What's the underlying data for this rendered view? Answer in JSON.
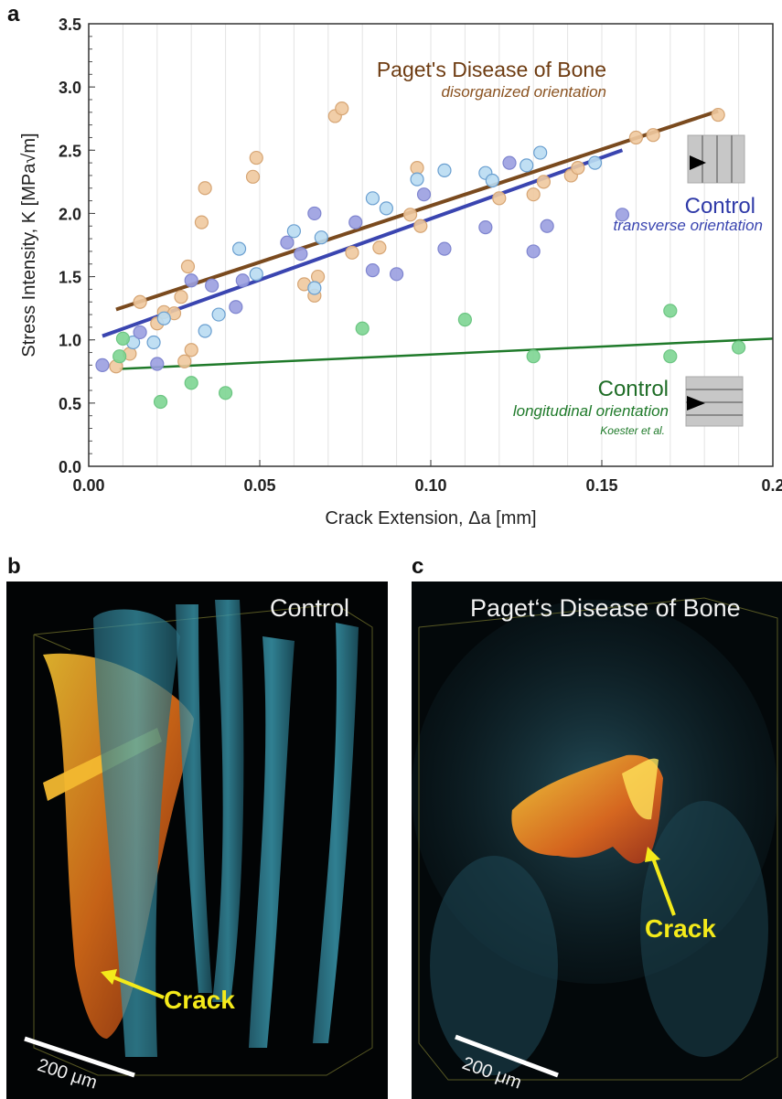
{
  "panels": {
    "a": "a",
    "b": "b",
    "c": "c"
  },
  "chart_data": {
    "type": "scatter",
    "xlabel": "Crack Extension, Δa [mm]",
    "ylabel": "Stress Intensity, K [MPa√m]",
    "xlim": [
      0,
      0.2
    ],
    "ylim": [
      0,
      3.5
    ],
    "x_ticks": [
      "0.00",
      "0.05",
      "0.10",
      "0.15",
      "0.2"
    ],
    "y_ticks": [
      "0.0",
      "0.5",
      "1.0",
      "1.5",
      "2.0",
      "2.5",
      "3.0",
      "3.5"
    ],
    "grid": true,
    "annotations": {
      "paget_title": "Paget's Disease of Bone",
      "paget_sub": "disorganized orientation",
      "transverse_title": "Control",
      "transverse_sub": "transverse orientation",
      "longitudinal_title": "Control",
      "longitudinal_sub": "longitudinal orientation",
      "reference": "Koester et al."
    },
    "colors": {
      "paget": "#7a4a1e",
      "paget_fill": "#efc99e",
      "transverse": "#3a45b0",
      "transverse_fill1": "#9a9ee0",
      "transverse_fill2": "#b9dcf2",
      "longitudinal": "#1f7a2a",
      "longitudinal_fill": "#7dd592"
    },
    "series": [
      {
        "id": "paget",
        "points": [
          [
            0.008,
            0.79
          ],
          [
            0.012,
            0.89
          ],
          [
            0.015,
            1.3
          ],
          [
            0.02,
            1.13
          ],
          [
            0.022,
            1.22
          ],
          [
            0.025,
            1.21
          ],
          [
            0.027,
            1.34
          ],
          [
            0.028,
            0.83
          ],
          [
            0.029,
            1.58
          ],
          [
            0.03,
            0.92
          ],
          [
            0.033,
            1.93
          ],
          [
            0.034,
            2.2
          ],
          [
            0.048,
            2.29
          ],
          [
            0.049,
            2.44
          ],
          [
            0.063,
            1.44
          ],
          [
            0.066,
            1.35
          ],
          [
            0.067,
            1.5
          ],
          [
            0.072,
            2.77
          ],
          [
            0.074,
            2.83
          ],
          [
            0.077,
            1.69
          ],
          [
            0.085,
            1.73
          ],
          [
            0.094,
            1.99
          ],
          [
            0.096,
            2.36
          ],
          [
            0.097,
            1.9
          ],
          [
            0.12,
            2.12
          ],
          [
            0.13,
            2.15
          ],
          [
            0.133,
            2.25
          ],
          [
            0.141,
            2.3
          ],
          [
            0.143,
            2.36
          ],
          [
            0.16,
            2.6
          ],
          [
            0.165,
            2.62
          ],
          [
            0.184,
            2.78
          ]
        ],
        "fit": [
          [
            0.008,
            1.24
          ],
          [
            0.184,
            2.81
          ]
        ]
      },
      {
        "id": "transverse",
        "points": [
          [
            0.004,
            0.8
          ],
          [
            0.013,
            0.98
          ],
          [
            0.015,
            1.06
          ],
          [
            0.019,
            0.98
          ],
          [
            0.02,
            0.81
          ],
          [
            0.022,
            1.17
          ],
          [
            0.03,
            1.47
          ],
          [
            0.034,
            1.07
          ],
          [
            0.036,
            1.43
          ],
          [
            0.038,
            1.2
          ],
          [
            0.043,
            1.26
          ],
          [
            0.044,
            1.72
          ],
          [
            0.045,
            1.47
          ],
          [
            0.049,
            1.52
          ],
          [
            0.058,
            1.77
          ],
          [
            0.06,
            1.86
          ],
          [
            0.062,
            1.68
          ],
          [
            0.066,
            1.41
          ],
          [
            0.066,
            2.0
          ],
          [
            0.068,
            1.81
          ],
          [
            0.078,
            1.93
          ],
          [
            0.083,
            2.12
          ],
          [
            0.083,
            1.55
          ],
          [
            0.087,
            2.04
          ],
          [
            0.09,
            1.52
          ],
          [
            0.096,
            2.27
          ],
          [
            0.098,
            2.15
          ],
          [
            0.104,
            2.34
          ],
          [
            0.104,
            1.72
          ],
          [
            0.116,
            2.32
          ],
          [
            0.116,
            1.89
          ],
          [
            0.118,
            2.26
          ],
          [
            0.123,
            2.4
          ],
          [
            0.128,
            2.38
          ],
          [
            0.13,
            1.7
          ],
          [
            0.132,
            2.48
          ],
          [
            0.134,
            1.9
          ],
          [
            0.148,
            2.4
          ],
          [
            0.156,
            1.99
          ]
        ],
        "fit": [
          [
            0.004,
            1.03
          ],
          [
            0.156,
            2.5
          ]
        ]
      },
      {
        "id": "longitudinal",
        "points": [
          [
            0.009,
            0.87
          ],
          [
            0.01,
            1.01
          ],
          [
            0.021,
            0.51
          ],
          [
            0.03,
            0.66
          ],
          [
            0.04,
            0.58
          ],
          [
            0.08,
            1.09
          ],
          [
            0.11,
            1.16
          ],
          [
            0.13,
            0.87
          ],
          [
            0.17,
            0.87
          ],
          [
            0.17,
            1.23
          ],
          [
            0.19,
            0.94
          ]
        ],
        "fit": [
          [
            0.009,
            0.77
          ],
          [
            0.2,
            1.01
          ]
        ]
      }
    ]
  },
  "panel_b": {
    "title": "Control",
    "crack_label": "Crack",
    "scale_label": "200 μm"
  },
  "panel_c": {
    "title": "Paget‘s Disease of Bone",
    "crack_label": "Crack",
    "scale_label": "200 μm"
  }
}
